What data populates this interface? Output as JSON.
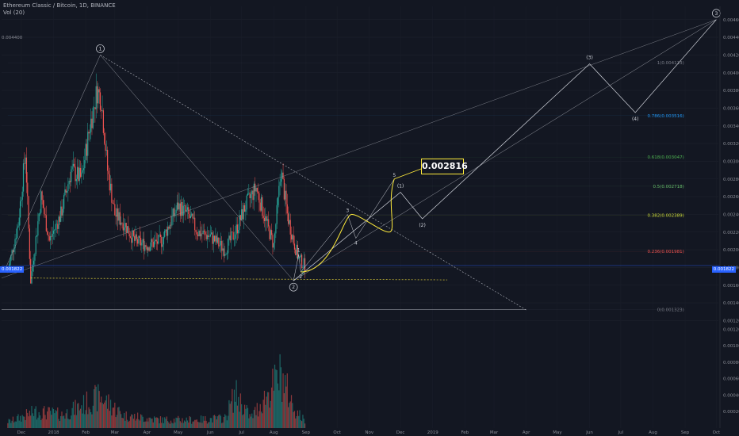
{
  "header": {
    "title": "Ethereum Classic / Bitcoin, 1D, BINANCE",
    "indicator": "Vol (20)"
  },
  "annotation_price": "0.002816",
  "current_price": "0.001822",
  "colors": {
    "background": "#131722",
    "up": "#26a69a",
    "down": "#ef5350",
    "wave": "#d1d4dc",
    "accent": "#ffeb3b",
    "price_tag": "#2962ff"
  },
  "chart_data": {
    "type": "candlestick",
    "ylim": [
      0.00115,
      0.00475
    ],
    "y_ticks": [
      "0.004600",
      "0.004400",
      "0.004200",
      "0.004000",
      "0.003800",
      "0.003600",
      "0.003400",
      "0.003200",
      "0.003000",
      "0.002800",
      "0.002600",
      "0.002400",
      "0.002200",
      "0.002000",
      "0.001800",
      "0.001600",
      "0.001400",
      "0.001200"
    ],
    "volume_ticks": [
      "0.001200",
      "0.001000",
      "0.000800",
      "0.000600",
      "0.000400",
      "0.000200"
    ],
    "x_labels": [
      "Dec",
      "2018",
      "Feb",
      "Mar",
      "Apr",
      "May",
      "Jun",
      "Jul",
      "Aug",
      "Sep",
      "Oct",
      "Nov",
      "Dec",
      "2019",
      "Feb",
      "Mar",
      "Apr",
      "May",
      "Jun",
      "Jul",
      "Aug",
      "Sep",
      "Oct"
    ],
    "price_path": [
      {
        "date": "2017-11-18",
        "price": 0.00175
      },
      {
        "date": "2017-11-28",
        "price": 0.0023
      },
      {
        "date": "2017-12-05",
        "price": 0.0031
      },
      {
        "date": "2017-12-10",
        "price": 0.00165
      },
      {
        "date": "2017-12-20",
        "price": 0.0026
      },
      {
        "date": "2017-12-28",
        "price": 0.0021
      },
      {
        "date": "2018-01-08",
        "price": 0.0024
      },
      {
        "date": "2018-01-18",
        "price": 0.0029
      },
      {
        "date": "2018-01-28",
        "price": 0.0028
      },
      {
        "date": "2018-02-05",
        "price": 0.0034
      },
      {
        "date": "2018-02-12",
        "price": 0.0038
      },
      {
        "date": "2018-02-16",
        "price": 0.0037
      },
      {
        "date": "2018-02-22",
        "price": 0.0029
      },
      {
        "date": "2018-03-01",
        "price": 0.0024
      },
      {
        "date": "2018-03-10",
        "price": 0.0023
      },
      {
        "date": "2018-03-20",
        "price": 0.0021
      },
      {
        "date": "2018-04-01",
        "price": 0.00205
      },
      {
        "date": "2018-04-15",
        "price": 0.0021
      },
      {
        "date": "2018-05-01",
        "price": 0.0025
      },
      {
        "date": "2018-05-10",
        "price": 0.0024
      },
      {
        "date": "2018-05-20",
        "price": 0.0022
      },
      {
        "date": "2018-06-01",
        "price": 0.00215
      },
      {
        "date": "2018-06-15",
        "price": 0.002
      },
      {
        "date": "2018-06-25",
        "price": 0.0022
      },
      {
        "date": "2018-07-05",
        "price": 0.0025
      },
      {
        "date": "2018-07-15",
        "price": 0.0027
      },
      {
        "date": "2018-07-25",
        "price": 0.0023
      },
      {
        "date": "2018-08-01",
        "price": 0.00205
      },
      {
        "date": "2018-08-08",
        "price": 0.0029
      },
      {
        "date": "2018-08-14",
        "price": 0.0024
      },
      {
        "date": "2018-08-20",
        "price": 0.0021
      },
      {
        "date": "2018-08-25",
        "price": 0.0019
      },
      {
        "date": "2018-08-31",
        "price": 0.00182
      }
    ],
    "volume_path": [
      {
        "date": "2017-11-20",
        "volume": 8e-05
      },
      {
        "date": "2017-12-15",
        "volume": 0.0002
      },
      {
        "date": "2018-01-10",
        "volume": 0.00016
      },
      {
        "date": "2018-02-15",
        "volume": 0.00038
      },
      {
        "date": "2018-03-10",
        "volume": 0.00015
      },
      {
        "date": "2018-04-15",
        "volume": 0.0001
      },
      {
        "date": "2018-05-20",
        "volume": 0.0001
      },
      {
        "date": "2018-06-15",
        "volume": 0.00012
      },
      {
        "date": "2018-06-25",
        "volume": 0.00042
      },
      {
        "date": "2018-07-10",
        "volume": 0.00012
      },
      {
        "date": "2018-08-08",
        "volume": 0.00065
      },
      {
        "date": "2018-08-20",
        "volume": 0.00025
      },
      {
        "date": "2018-08-31",
        "volume": 8e-05
      }
    ],
    "fib_levels": [
      {
        "label": "1(0.004113)",
        "price": 0.004113,
        "color": "#787b86"
      },
      {
        "label": "0.786(0.003516)",
        "price": 0.003516,
        "color": "#2196f3"
      },
      {
        "label": "0.618(0.003047)",
        "price": 0.003047,
        "color": "#4caf50"
      },
      {
        "label": "0.5(0.002718)",
        "price": 0.002718,
        "color": "#66bb6a"
      },
      {
        "label": "0.382(0.002389)",
        "price": 0.002389,
        "color": "#cddc39"
      },
      {
        "label": "0.236(0.001981)",
        "price": 0.001981,
        "color": "#ef5350"
      },
      {
        "label": "0(0.001323)",
        "price": 0.001323,
        "color": "#787b86"
      }
    ],
    "main_waves": [
      {
        "label": "1",
        "date": "2018-02-15",
        "price": 0.0042
      },
      {
        "label": "2",
        "date": "2018-08-20",
        "price": 0.00165
      },
      {
        "label": "(1)",
        "date": "2018-12-01",
        "price": 0.00265
      },
      {
        "label": "(2)",
        "date": "2018-12-22",
        "price": 0.00235
      },
      {
        "label": "(3)",
        "date": "2019-06-01",
        "price": 0.0041
      },
      {
        "label": "(4)",
        "date": "2019-07-15",
        "price": 0.00355
      },
      {
        "label": "3",
        "date": "2019-10-01",
        "price": 0.0046
      }
    ],
    "minor_waves": [
      {
        "label": "1",
        "date": "2018-08-25",
        "price": 0.00195
      },
      {
        "label": "2",
        "date": "2018-08-27",
        "price": 0.00175
      },
      {
        "label": "3",
        "date": "2018-10-11",
        "price": 0.0024
      },
      {
        "label": "4",
        "date": "2018-10-19",
        "price": 0.00213
      },
      {
        "label": "5",
        "date": "2018-11-25",
        "price": 0.0028
      }
    ]
  }
}
